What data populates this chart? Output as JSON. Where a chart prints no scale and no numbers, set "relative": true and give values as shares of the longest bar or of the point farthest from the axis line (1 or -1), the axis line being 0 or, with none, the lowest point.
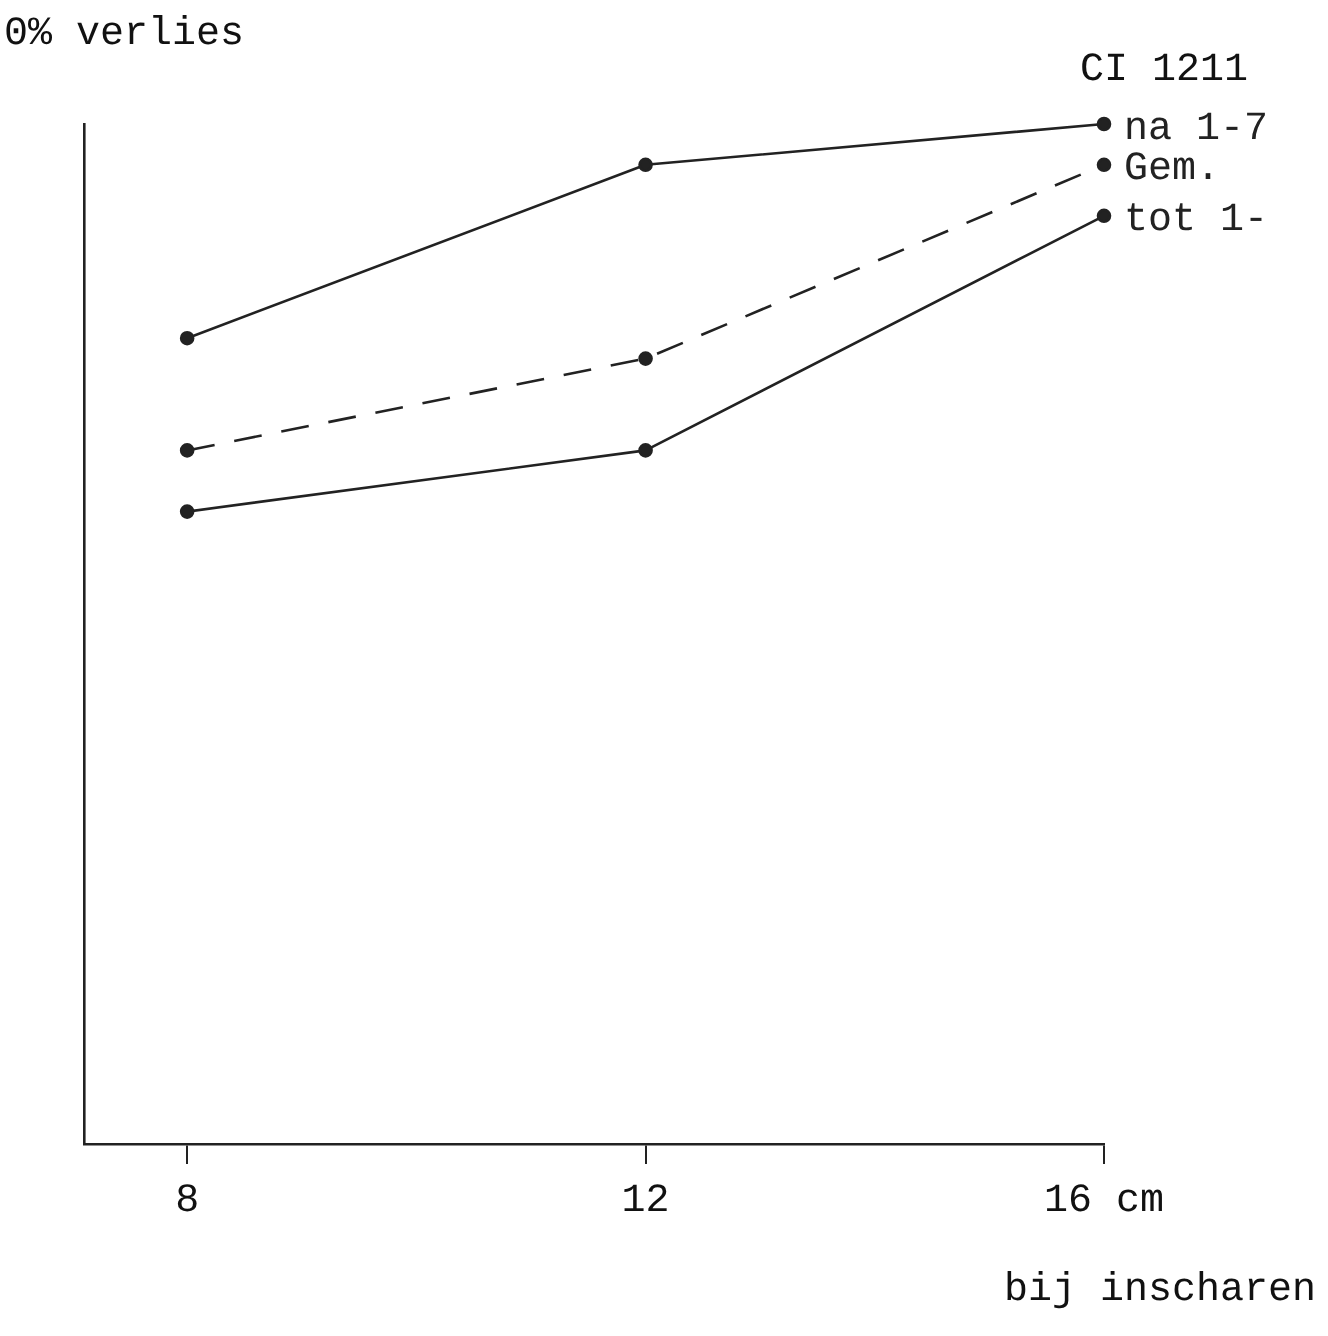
{
  "chart_data": {
    "type": "line",
    "relative": true,
    "ylabel": "0% verlies",
    "xlabel": "bij inscharen",
    "legend_title": "CI 1211",
    "x": [
      8,
      12,
      16
    ],
    "xlim": [
      7.1,
      16
    ],
    "xticks": [
      8,
      12,
      {
        "value": 16,
        "label": "16 cm"
      }
    ],
    "marker": "circle",
    "grid": false,
    "legend": false,
    "series": [
      {
        "name": "na 1-7",
        "color": "#222222",
        "line_style": "solid",
        "values": [
          0.79,
          0.96,
          1.0
        ]
      },
      {
        "name": "Gem.",
        "color": "#222222",
        "line_style": "dashed",
        "values": [
          0.68,
          0.77,
          0.96
        ]
      },
      {
        "name": "tot 1-",
        "color": "#222222",
        "line_style": "solid",
        "values": [
          0.62,
          0.68,
          0.91
        ]
      }
    ]
  }
}
